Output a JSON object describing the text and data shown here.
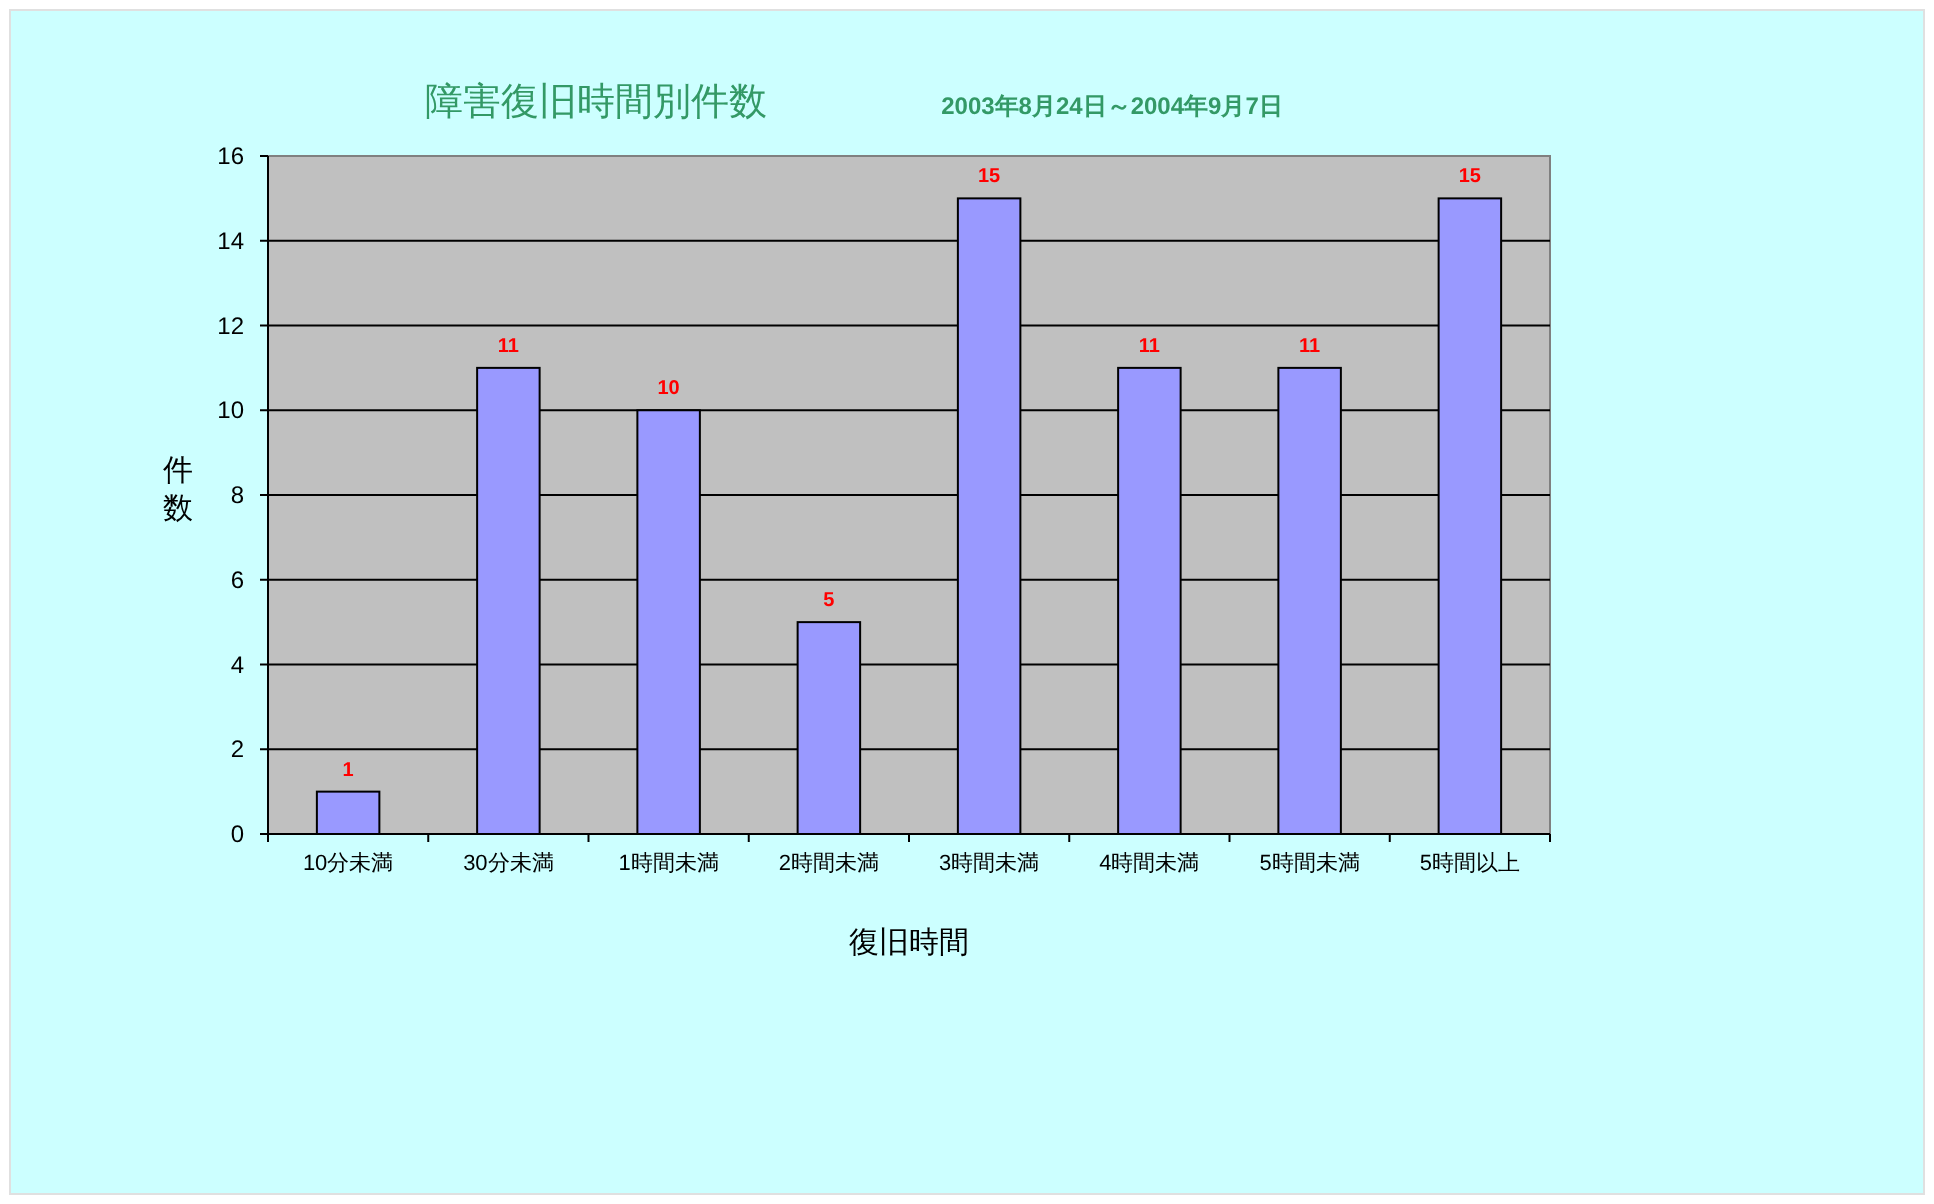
{
  "chart_data": {
    "type": "bar",
    "title": "障害復旧時間別件数",
    "subtitle": "2003年8月24日～2004年9月7日",
    "xlabel": "復旧時間",
    "ylabel": "件数",
    "categories": [
      "10分未満",
      "30分未満",
      "1時間未満",
      "2時間未満",
      "3時間未満",
      "4時間未満",
      "5時間未満",
      "5時間以上"
    ],
    "values": [
      1,
      11,
      10,
      5,
      15,
      11,
      11,
      15
    ],
    "color": "#9999ff",
    "ylim": [
      0,
      16
    ],
    "yticks": [
      0,
      2,
      4,
      6,
      8,
      10,
      12,
      14,
      16
    ],
    "grid": "y",
    "data_labels": true
  }
}
